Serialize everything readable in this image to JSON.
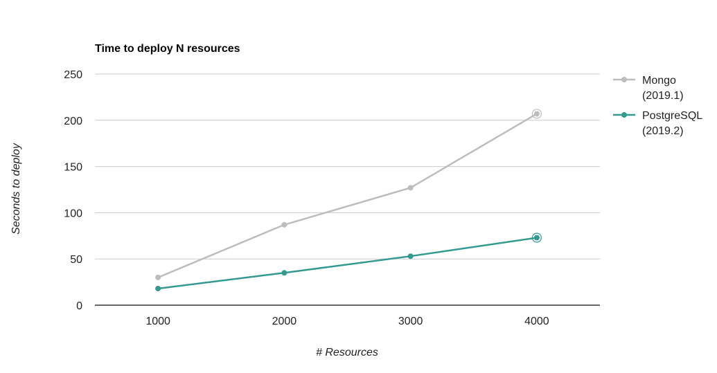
{
  "chart_data": {
    "type": "line",
    "title": "Time to deploy N resources",
    "xlabel": "# Resources",
    "ylabel": "Seconds to deploy",
    "x": [
      1000,
      2000,
      3000,
      4000
    ],
    "x_tick_labels": [
      "1000",
      "2000",
      "3000",
      "4000"
    ],
    "xlim": [
      500,
      4500
    ],
    "ylim": [
      0,
      250
    ],
    "y_ticks": [
      0,
      50,
      100,
      150,
      200,
      250
    ],
    "grid": true,
    "legend_position": "right",
    "series": [
      {
        "name": "Mongo",
        "name_line2": "(2019.1)",
        "color": "#bdbdbd",
        "values": [
          30,
          87,
          127,
          207
        ]
      },
      {
        "name": "PostgreSQL",
        "name_line2": "(2019.2)",
        "color": "#329a90",
        "values": [
          18,
          35,
          53,
          73
        ]
      }
    ]
  }
}
